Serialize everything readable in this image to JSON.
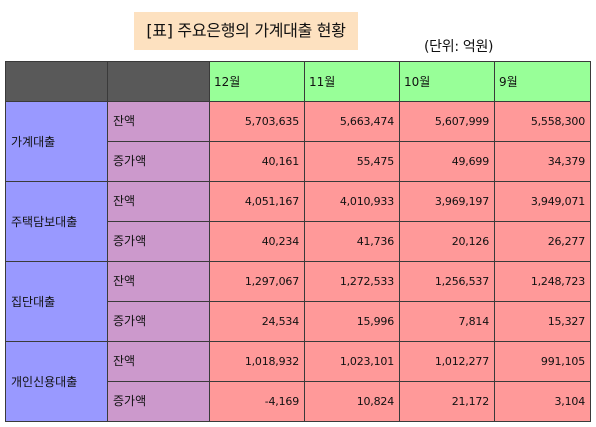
{
  "title": "[표] 주요은행의 가계대출 현황",
  "unit": "(단위: 억원)",
  "months": [
    "12월",
    "11월",
    "10월",
    "9월"
  ],
  "categories": [
    {
      "name": "가계대출",
      "rows": [
        {
          "label": "잔액",
          "values": [
            "5,703,635",
            "5,663,474",
            "5,607,999",
            "5,558,300"
          ]
        },
        {
          "label": "증가액",
          "values": [
            "40,161",
            "55,475",
            "49,699",
            "34,379"
          ]
        }
      ]
    },
    {
      "name": "주택담보대출",
      "rows": [
        {
          "label": "잔액",
          "values": [
            "4,051,167",
            "4,010,933",
            "3,969,197",
            "3,949,071"
          ]
        },
        {
          "label": "증가액",
          "values": [
            "40,234",
            "41,736",
            "20,126",
            "26,277"
          ]
        }
      ]
    },
    {
      "name": "집단대출",
      "rows": [
        {
          "label": "잔액",
          "values": [
            "1,297,067",
            "1,272,533",
            "1,256,537",
            "1,248,723"
          ]
        },
        {
          "label": "증가액",
          "values": [
            "24,534",
            "15,996",
            "7,814",
            "15,327"
          ]
        }
      ]
    },
    {
      "name": "개인신용대출",
      "rows": [
        {
          "label": "잔액",
          "values": [
            "1,018,932",
            "1,023,101",
            "1,012,277",
            "991,105"
          ]
        },
        {
          "label": "증가액",
          "values": [
            "-4,169",
            "10,824",
            "21,172",
            "3,104"
          ]
        }
      ]
    }
  ]
}
